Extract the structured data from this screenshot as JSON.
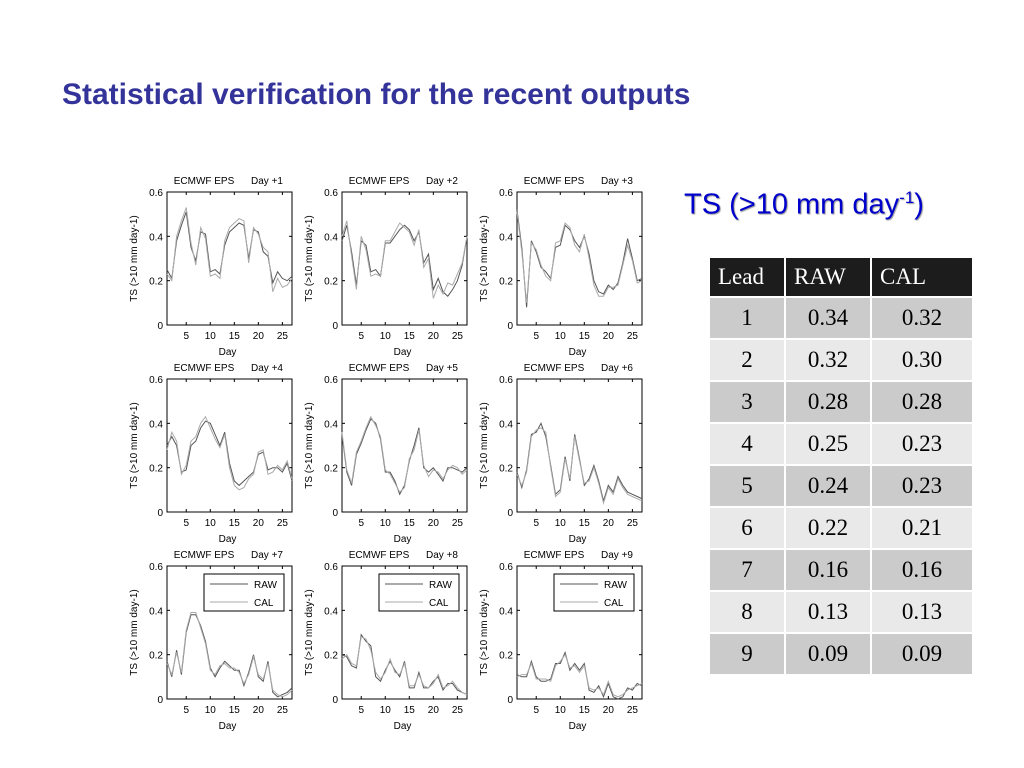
{
  "slide": {
    "title": "Statistical verification for the recent outputs",
    "ts_heading_main": "TS (>10 mm day",
    "ts_heading_sup": "-1",
    "ts_heading_close": ")"
  },
  "table": {
    "headers": [
      "Lead",
      "RAW",
      "CAL"
    ],
    "rows": [
      [
        "1",
        "0.34",
        "0.32"
      ],
      [
        "2",
        "0.32",
        "0.30"
      ],
      [
        "3",
        "0.28",
        "0.28"
      ],
      [
        "4",
        "0.25",
        "0.23"
      ],
      [
        "5",
        "0.24",
        "0.23"
      ],
      [
        "6",
        "0.22",
        "0.21"
      ],
      [
        "7",
        "0.16",
        "0.16"
      ],
      [
        "8",
        "0.13",
        "0.13"
      ],
      [
        "9",
        "0.09",
        "0.09"
      ]
    ]
  },
  "chart_data": [
    {
      "type": "line",
      "title_left": "ECMWF EPS",
      "title_right": "Day +1",
      "xlabel": "Day",
      "ylabel": "TS (>10 mm day-1)",
      "xlim": [
        1,
        27
      ],
      "ylim": [
        0,
        0.6
      ],
      "xticks": [
        5,
        10,
        15,
        20,
        25
      ],
      "yticks": [
        0,
        0.2,
        0.4,
        0.6
      ],
      "legend": false,
      "x": [
        1,
        2,
        3,
        4,
        5,
        6,
        7,
        8,
        9,
        10,
        11,
        12,
        13,
        14,
        15,
        16,
        17,
        18,
        19,
        20,
        21,
        22,
        23,
        24,
        25,
        26,
        27
      ],
      "series": [
        {
          "name": "RAW",
          "color": "#555555",
          "values": [
            0.25,
            0.21,
            0.38,
            0.45,
            0.51,
            0.35,
            0.29,
            0.42,
            0.41,
            0.24,
            0.25,
            0.23,
            0.36,
            0.42,
            0.44,
            0.46,
            0.45,
            0.3,
            0.43,
            0.42,
            0.33,
            0.31,
            0.19,
            0.24,
            0.21,
            0.2,
            0.22
          ]
        },
        {
          "name": "CAL",
          "color": "#aaaaaa",
          "values": [
            0.23,
            0.2,
            0.4,
            0.47,
            0.53,
            0.37,
            0.27,
            0.44,
            0.39,
            0.22,
            0.23,
            0.21,
            0.38,
            0.44,
            0.46,
            0.48,
            0.47,
            0.28,
            0.44,
            0.41,
            0.35,
            0.33,
            0.15,
            0.21,
            0.17,
            0.18,
            0.21
          ]
        }
      ]
    },
    {
      "type": "line",
      "title_left": "ECMWF EPS",
      "title_right": "Day +2",
      "xlabel": "Day",
      "ylabel": "TS (>10 mm day-1)",
      "xlim": [
        1,
        27
      ],
      "ylim": [
        0,
        0.6
      ],
      "xticks": [
        5,
        10,
        15,
        20,
        25
      ],
      "yticks": [
        0,
        0.2,
        0.4,
        0.6
      ],
      "legend": false,
      "x": [
        1,
        2,
        3,
        4,
        5,
        6,
        7,
        8,
        9,
        10,
        11,
        12,
        13,
        14,
        15,
        16,
        17,
        18,
        19,
        20,
        21,
        22,
        23,
        24,
        25,
        26,
        27
      ],
      "series": [
        {
          "name": "RAW",
          "color": "#555555",
          "values": [
            0.38,
            0.45,
            0.33,
            0.18,
            0.38,
            0.36,
            0.24,
            0.25,
            0.22,
            0.37,
            0.37,
            0.4,
            0.43,
            0.45,
            0.43,
            0.38,
            0.42,
            0.28,
            0.32,
            0.16,
            0.21,
            0.15,
            0.13,
            0.16,
            0.2,
            0.27,
            0.4
          ]
        },
        {
          "name": "CAL",
          "color": "#aaaaaa",
          "values": [
            0.4,
            0.47,
            0.31,
            0.16,
            0.4,
            0.34,
            0.22,
            0.23,
            0.22,
            0.38,
            0.38,
            0.42,
            0.46,
            0.44,
            0.42,
            0.36,
            0.43,
            0.26,
            0.3,
            0.12,
            0.18,
            0.14,
            0.19,
            0.18,
            0.23,
            0.28,
            0.4
          ]
        }
      ]
    },
    {
      "type": "line",
      "title_left": "ECMWF EPS",
      "title_right": "Day +3",
      "xlabel": "Day",
      "ylabel": "TS (>10 mm day-1)",
      "xlim": [
        1,
        27
      ],
      "ylim": [
        0,
        0.6
      ],
      "xticks": [
        5,
        10,
        15,
        20,
        25
      ],
      "yticks": [
        0,
        0.2,
        0.4,
        0.6
      ],
      "legend": false,
      "x": [
        1,
        2,
        3,
        4,
        5,
        6,
        7,
        8,
        9,
        10,
        11,
        12,
        13,
        14,
        15,
        16,
        17,
        18,
        19,
        20,
        21,
        22,
        23,
        24,
        25,
        26,
        27
      ],
      "series": [
        {
          "name": "RAW",
          "color": "#555555",
          "values": [
            0.52,
            0.35,
            0.08,
            0.38,
            0.33,
            0.26,
            0.24,
            0.21,
            0.35,
            0.36,
            0.45,
            0.43,
            0.38,
            0.35,
            0.4,
            0.32,
            0.2,
            0.15,
            0.14,
            0.18,
            0.16,
            0.19,
            0.28,
            0.39,
            0.3,
            0.2,
            0.21
          ]
        },
        {
          "name": "CAL",
          "color": "#aaaaaa",
          "values": [
            0.51,
            0.33,
            0.1,
            0.37,
            0.34,
            0.27,
            0.22,
            0.2,
            0.37,
            0.38,
            0.46,
            0.44,
            0.36,
            0.33,
            0.41,
            0.3,
            0.18,
            0.13,
            0.13,
            0.17,
            0.17,
            0.18,
            0.27,
            0.36,
            0.29,
            0.19,
            0.2
          ]
        }
      ]
    },
    {
      "type": "line",
      "title_left": "ECMWF EPS",
      "title_right": "Day +4",
      "xlabel": "Day",
      "ylabel": "TS (>10 mm day-1)",
      "xlim": [
        1,
        27
      ],
      "ylim": [
        0,
        0.6
      ],
      "xticks": [
        5,
        10,
        15,
        20,
        25
      ],
      "yticks": [
        0,
        0.2,
        0.4,
        0.6
      ],
      "legend": false,
      "x": [
        1,
        2,
        3,
        4,
        5,
        6,
        7,
        8,
        9,
        10,
        11,
        12,
        13,
        14,
        15,
        16,
        17,
        18,
        19,
        20,
        21,
        22,
        23,
        24,
        25,
        26,
        27
      ],
      "series": [
        {
          "name": "RAW",
          "color": "#555555",
          "values": [
            0.3,
            0.34,
            0.3,
            0.18,
            0.19,
            0.3,
            0.32,
            0.38,
            0.41,
            0.4,
            0.35,
            0.3,
            0.36,
            0.22,
            0.14,
            0.12,
            0.14,
            0.16,
            0.18,
            0.26,
            0.27,
            0.19,
            0.2,
            0.2,
            0.18,
            0.22,
            0.14
          ]
        },
        {
          "name": "CAL",
          "color": "#aaaaaa",
          "values": [
            0.28,
            0.36,
            0.32,
            0.17,
            0.21,
            0.32,
            0.34,
            0.4,
            0.43,
            0.38,
            0.33,
            0.29,
            0.35,
            0.2,
            0.12,
            0.1,
            0.11,
            0.15,
            0.17,
            0.27,
            0.28,
            0.17,
            0.18,
            0.21,
            0.19,
            0.23,
            0.15
          ]
        }
      ]
    },
    {
      "type": "line",
      "title_left": "ECMWF EPS",
      "title_right": "Day +5",
      "xlabel": "Day",
      "ylabel": "TS (>10 mm day-1)",
      "xlim": [
        1,
        27
      ],
      "ylim": [
        0,
        0.6
      ],
      "xticks": [
        5,
        10,
        15,
        20,
        25
      ],
      "yticks": [
        0,
        0.2,
        0.4,
        0.6
      ],
      "legend": false,
      "x": [
        1,
        2,
        3,
        4,
        5,
        6,
        7,
        8,
        9,
        10,
        11,
        12,
        13,
        14,
        15,
        16,
        17,
        18,
        19,
        20,
        21,
        22,
        23,
        24,
        25,
        26,
        27
      ],
      "series": [
        {
          "name": "RAW",
          "color": "#555555",
          "values": [
            0.35,
            0.18,
            0.12,
            0.26,
            0.31,
            0.37,
            0.42,
            0.4,
            0.33,
            0.18,
            0.18,
            0.14,
            0.08,
            0.12,
            0.23,
            0.3,
            0.38,
            0.2,
            0.18,
            0.2,
            0.17,
            0.14,
            0.2,
            0.2,
            0.19,
            0.18,
            0.2
          ]
        },
        {
          "name": "CAL",
          "color": "#aaaaaa",
          "values": [
            0.36,
            0.19,
            0.13,
            0.27,
            0.32,
            0.38,
            0.43,
            0.39,
            0.34,
            0.19,
            0.17,
            0.13,
            0.09,
            0.11,
            0.24,
            0.28,
            0.37,
            0.21,
            0.16,
            0.19,
            0.18,
            0.15,
            0.19,
            0.21,
            0.2,
            0.17,
            0.19
          ]
        }
      ]
    },
    {
      "type": "line",
      "title_left": "ECMWF EPS",
      "title_right": "Day +6",
      "xlabel": "Day",
      "ylabel": "TS (>10 mm day-1)",
      "xlim": [
        1,
        27
      ],
      "ylim": [
        0,
        0.6
      ],
      "xticks": [
        5,
        10,
        15,
        20,
        25
      ],
      "yticks": [
        0,
        0.2,
        0.4,
        0.6
      ],
      "legend": false,
      "x": [
        1,
        2,
        3,
        4,
        5,
        6,
        7,
        8,
        9,
        10,
        11,
        12,
        13,
        14,
        15,
        16,
        17,
        18,
        19,
        20,
        21,
        22,
        23,
        24,
        25,
        26,
        27
      ],
      "series": [
        {
          "name": "RAW",
          "color": "#555555",
          "values": [
            0.18,
            0.11,
            0.19,
            0.35,
            0.36,
            0.4,
            0.34,
            0.21,
            0.08,
            0.1,
            0.25,
            0.14,
            0.35,
            0.24,
            0.12,
            0.15,
            0.21,
            0.14,
            0.05,
            0.12,
            0.09,
            0.16,
            0.12,
            0.09,
            0.08,
            0.07,
            0.06
          ]
        },
        {
          "name": "CAL",
          "color": "#aaaaaa",
          "values": [
            0.17,
            0.12,
            0.18,
            0.34,
            0.37,
            0.38,
            0.36,
            0.2,
            0.07,
            0.09,
            0.24,
            0.15,
            0.34,
            0.23,
            0.13,
            0.14,
            0.2,
            0.13,
            0.04,
            0.11,
            0.08,
            0.15,
            0.11,
            0.08,
            0.07,
            0.06,
            0.05
          ]
        }
      ]
    },
    {
      "type": "line",
      "title_left": "ECMWF EPS",
      "title_right": "Day +7",
      "xlabel": "Day",
      "ylabel": "TS (>10 mm day-1)",
      "xlim": [
        1,
        27
      ],
      "ylim": [
        0,
        0.6
      ],
      "xticks": [
        5,
        10,
        15,
        20,
        25
      ],
      "yticks": [
        0,
        0.2,
        0.4,
        0.6
      ],
      "legend": true,
      "x": [
        1,
        2,
        3,
        4,
        5,
        6,
        7,
        8,
        9,
        10,
        11,
        12,
        13,
        14,
        15,
        16,
        17,
        18,
        19,
        20,
        21,
        22,
        23,
        24,
        25,
        26,
        27
      ],
      "series": [
        {
          "name": "RAW",
          "color": "#555555",
          "values": [
            0.17,
            0.1,
            0.22,
            0.11,
            0.3,
            0.38,
            0.38,
            0.33,
            0.26,
            0.14,
            0.1,
            0.14,
            0.17,
            0.15,
            0.13,
            0.13,
            0.06,
            0.12,
            0.2,
            0.1,
            0.08,
            0.17,
            0.03,
            0.01,
            0.02,
            0.03,
            0.05
          ]
        },
        {
          "name": "CAL",
          "color": "#aaaaaa",
          "values": [
            0.16,
            0.11,
            0.21,
            0.12,
            0.31,
            0.39,
            0.39,
            0.32,
            0.25,
            0.13,
            0.11,
            0.15,
            0.16,
            0.14,
            0.14,
            0.12,
            0.07,
            0.11,
            0.19,
            0.11,
            0.09,
            0.16,
            0.04,
            0.02,
            0.01,
            0.02,
            0.04
          ]
        }
      ]
    },
    {
      "type": "line",
      "title_left": "ECMWF EPS",
      "title_right": "Day +8",
      "xlabel": "Day",
      "ylabel": "TS (>10 mm day-1)",
      "xlim": [
        1,
        27
      ],
      "ylim": [
        0,
        0.6
      ],
      "xticks": [
        5,
        10,
        15,
        20,
        25
      ],
      "yticks": [
        0,
        0.2,
        0.4,
        0.6
      ],
      "legend": true,
      "x": [
        1,
        2,
        3,
        4,
        5,
        6,
        7,
        8,
        9,
        10,
        11,
        12,
        13,
        14,
        15,
        16,
        17,
        18,
        19,
        20,
        21,
        22,
        23,
        24,
        25,
        26,
        27
      ],
      "series": [
        {
          "name": "RAW",
          "color": "#555555",
          "values": [
            0.2,
            0.19,
            0.15,
            0.14,
            0.29,
            0.26,
            0.24,
            0.1,
            0.08,
            0.13,
            0.17,
            0.13,
            0.1,
            0.17,
            0.05,
            0.05,
            0.12,
            0.05,
            0.05,
            0.08,
            0.1,
            0.04,
            0.07,
            0.07,
            0.04,
            0.03,
            0.02
          ]
        },
        {
          "name": "CAL",
          "color": "#aaaaaa",
          "values": [
            0.18,
            0.2,
            0.16,
            0.15,
            0.28,
            0.27,
            0.22,
            0.12,
            0.09,
            0.12,
            0.18,
            0.12,
            0.11,
            0.16,
            0.06,
            0.06,
            0.11,
            0.06,
            0.05,
            0.07,
            0.11,
            0.05,
            0.06,
            0.08,
            0.05,
            0.03,
            0.02
          ]
        }
      ]
    },
    {
      "type": "line",
      "title_left": "ECMWF EPS",
      "title_right": "Day +9",
      "xlabel": "Day",
      "ylabel": "TS (>10 mm day-1)",
      "xlim": [
        1,
        27
      ],
      "ylim": [
        0,
        0.6
      ],
      "xticks": [
        5,
        10,
        15,
        20,
        25
      ],
      "yticks": [
        0,
        0.2,
        0.4,
        0.6
      ],
      "legend": true,
      "x": [
        1,
        2,
        3,
        4,
        5,
        6,
        7,
        8,
        9,
        10,
        11,
        12,
        13,
        14,
        15,
        16,
        17,
        18,
        19,
        20,
        21,
        22,
        23,
        24,
        25,
        26,
        27
      ],
      "series": [
        {
          "name": "RAW",
          "color": "#555555",
          "values": [
            0.11,
            0.1,
            0.1,
            0.17,
            0.1,
            0.08,
            0.08,
            0.09,
            0.16,
            0.16,
            0.21,
            0.13,
            0.16,
            0.13,
            0.16,
            0.04,
            0.03,
            0.06,
            0.01,
            0.07,
            0.01,
            0.0,
            0.01,
            0.05,
            0.04,
            0.07,
            0.06
          ]
        },
        {
          "name": "CAL",
          "color": "#aaaaaa",
          "values": [
            0.1,
            0.11,
            0.11,
            0.16,
            0.09,
            0.09,
            0.09,
            0.08,
            0.15,
            0.17,
            0.2,
            0.14,
            0.15,
            0.12,
            0.15,
            0.05,
            0.04,
            0.05,
            0.02,
            0.08,
            0.02,
            0.01,
            0.02,
            0.04,
            0.05,
            0.06,
            0.07
          ]
        }
      ]
    }
  ]
}
